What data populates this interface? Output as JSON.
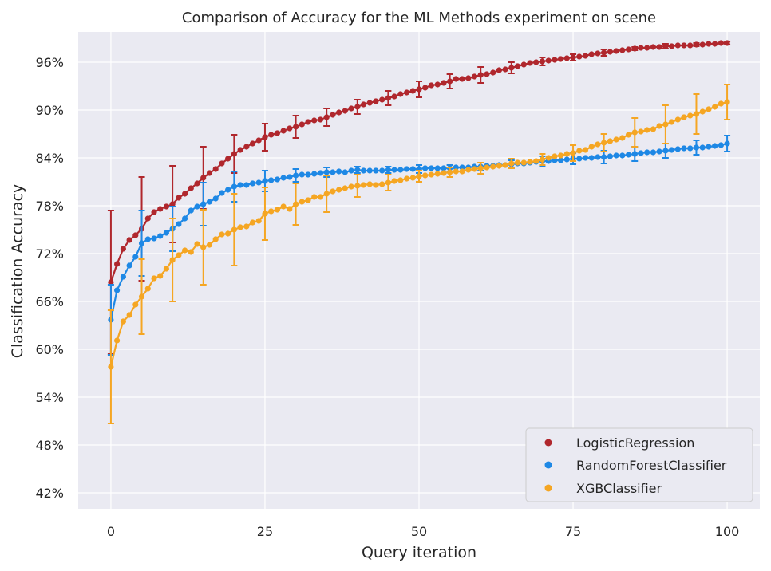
{
  "chart_data": {
    "type": "line",
    "title": "Comparison of Accuracy for the ML Methods experiment on scene",
    "xlabel": "Query iteration",
    "ylabel": "Classification Accuracy",
    "xlim": [
      -5.3,
      105.3
    ],
    "ylim": [
      0.4,
      0.998
    ],
    "xticks": [
      0,
      25,
      50,
      75,
      100
    ],
    "yticks": [
      0.42,
      0.48,
      0.54,
      0.6,
      0.66,
      0.72,
      0.78,
      0.84,
      0.9,
      0.96
    ],
    "ytick_labels": [
      "42%",
      "48%",
      "54%",
      "60%",
      "66%",
      "72%",
      "78%",
      "84%",
      "90%",
      "96%"
    ],
    "grid": true,
    "legend_position": "lower-right",
    "series": [
      {
        "name": "LogisticRegression",
        "color": "#b0272d",
        "x": [
          0,
          1,
          2,
          3,
          4,
          5,
          6,
          7,
          8,
          9,
          10,
          11,
          12,
          13,
          14,
          15,
          16,
          17,
          18,
          19,
          20,
          21,
          22,
          23,
          24,
          25,
          26,
          27,
          28,
          29,
          30,
          31,
          32,
          33,
          34,
          35,
          36,
          37,
          38,
          39,
          40,
          41,
          42,
          43,
          44,
          45,
          46,
          47,
          48,
          49,
          50,
          51,
          52,
          53,
          54,
          55,
          56,
          57,
          58,
          59,
          60,
          61,
          62,
          63,
          64,
          65,
          66,
          67,
          68,
          69,
          70,
          71,
          72,
          73,
          74,
          75,
          76,
          77,
          78,
          79,
          80,
          81,
          82,
          83,
          84,
          85,
          86,
          87,
          88,
          89,
          90,
          91,
          92,
          93,
          94,
          95,
          96,
          97,
          98,
          99,
          100
        ],
        "values": [
          0.684,
          0.707,
          0.726,
          0.737,
          0.743,
          0.751,
          0.764,
          0.772,
          0.776,
          0.779,
          0.782,
          0.79,
          0.795,
          0.802,
          0.808,
          0.815,
          0.821,
          0.826,
          0.833,
          0.839,
          0.845,
          0.85,
          0.854,
          0.858,
          0.862,
          0.866,
          0.869,
          0.871,
          0.874,
          0.877,
          0.879,
          0.882,
          0.885,
          0.887,
          0.888,
          0.891,
          0.894,
          0.897,
          0.899,
          0.902,
          0.904,
          0.907,
          0.909,
          0.911,
          0.913,
          0.915,
          0.917,
          0.92,
          0.922,
          0.924,
          0.926,
          0.928,
          0.931,
          0.932,
          0.934,
          0.936,
          0.939,
          0.939,
          0.94,
          0.942,
          0.944,
          0.945,
          0.947,
          0.95,
          0.951,
          0.953,
          0.955,
          0.957,
          0.959,
          0.96,
          0.961,
          0.962,
          0.963,
          0.964,
          0.965,
          0.966,
          0.967,
          0.968,
          0.97,
          0.971,
          0.972,
          0.973,
          0.974,
          0.975,
          0.976,
          0.977,
          0.978,
          0.978,
          0.979,
          0.979,
          0.98,
          0.98,
          0.981,
          0.981,
          0.981,
          0.982,
          0.982,
          0.983,
          0.983,
          0.984,
          0.984
        ],
        "error_x": [
          0,
          5,
          10,
          15,
          20,
          25,
          30,
          35,
          40,
          45,
          50,
          55,
          60,
          65,
          70,
          75,
          80,
          85,
          90,
          95,
          100
        ],
        "error_values": [
          0.09,
          0.065,
          0.048,
          0.039,
          0.024,
          0.017,
          0.014,
          0.011,
          0.009,
          0.009,
          0.01,
          0.009,
          0.01,
          0.007,
          0.005,
          0.004,
          0.004,
          0.002,
          0.003,
          0.002,
          0.002
        ]
      },
      {
        "name": "RandomForestClassifier",
        "color": "#1e88e5",
        "x": [
          0,
          1,
          2,
          3,
          4,
          5,
          6,
          7,
          8,
          9,
          10,
          11,
          12,
          13,
          14,
          15,
          16,
          17,
          18,
          19,
          20,
          21,
          22,
          23,
          24,
          25,
          26,
          27,
          28,
          29,
          30,
          31,
          32,
          33,
          34,
          35,
          36,
          37,
          38,
          39,
          40,
          41,
          42,
          43,
          44,
          45,
          46,
          47,
          48,
          49,
          50,
          51,
          52,
          53,
          54,
          55,
          56,
          57,
          58,
          59,
          60,
          61,
          62,
          63,
          64,
          65,
          66,
          67,
          68,
          69,
          70,
          71,
          72,
          73,
          74,
          75,
          76,
          77,
          78,
          79,
          80,
          81,
          82,
          83,
          84,
          85,
          86,
          87,
          88,
          89,
          90,
          91,
          92,
          93,
          94,
          95,
          96,
          97,
          98,
          99,
          100
        ],
        "values": [
          0.637,
          0.674,
          0.691,
          0.705,
          0.716,
          0.733,
          0.738,
          0.739,
          0.742,
          0.746,
          0.751,
          0.757,
          0.764,
          0.774,
          0.779,
          0.782,
          0.785,
          0.789,
          0.796,
          0.8,
          0.804,
          0.806,
          0.806,
          0.808,
          0.809,
          0.811,
          0.812,
          0.813,
          0.815,
          0.816,
          0.818,
          0.819,
          0.819,
          0.82,
          0.821,
          0.822,
          0.822,
          0.823,
          0.822,
          0.824,
          0.825,
          0.824,
          0.824,
          0.824,
          0.824,
          0.825,
          0.825,
          0.825,
          0.826,
          0.826,
          0.826,
          0.827,
          0.827,
          0.827,
          0.827,
          0.827,
          0.828,
          0.828,
          0.828,
          0.829,
          0.829,
          0.83,
          0.83,
          0.831,
          0.831,
          0.832,
          0.833,
          0.833,
          0.834,
          0.835,
          0.836,
          0.836,
          0.837,
          0.837,
          0.838,
          0.839,
          0.839,
          0.84,
          0.84,
          0.841,
          0.841,
          0.842,
          0.843,
          0.843,
          0.844,
          0.845,
          0.846,
          0.847,
          0.847,
          0.848,
          0.849,
          0.85,
          0.851,
          0.852,
          0.852,
          0.853,
          0.853,
          0.854,
          0.855,
          0.856,
          0.858
        ],
        "error_x": [
          0,
          5,
          10,
          15,
          20,
          25,
          30,
          35,
          40,
          45,
          50,
          55,
          60,
          65,
          70,
          75,
          80,
          85,
          90,
          95,
          100
        ],
        "error_values": [
          0.044,
          0.041,
          0.028,
          0.027,
          0.019,
          0.013,
          0.008,
          0.006,
          0.004,
          0.004,
          0.005,
          0.004,
          0.005,
          0.005,
          0.006,
          0.007,
          0.008,
          0.009,
          0.009,
          0.009,
          0.01
        ]
      },
      {
        "name": "XGBClassifier",
        "color": "#f5a623",
        "x": [
          0,
          1,
          2,
          3,
          4,
          5,
          6,
          7,
          8,
          9,
          10,
          11,
          12,
          13,
          14,
          15,
          16,
          17,
          18,
          19,
          20,
          21,
          22,
          23,
          24,
          25,
          26,
          27,
          28,
          29,
          30,
          31,
          32,
          33,
          34,
          35,
          36,
          37,
          38,
          39,
          40,
          41,
          42,
          43,
          44,
          45,
          46,
          47,
          48,
          49,
          50,
          51,
          52,
          53,
          54,
          55,
          56,
          57,
          58,
          59,
          60,
          61,
          62,
          63,
          64,
          65,
          66,
          67,
          68,
          69,
          70,
          71,
          72,
          73,
          74,
          75,
          76,
          77,
          78,
          79,
          80,
          81,
          82,
          83,
          84,
          85,
          86,
          87,
          88,
          89,
          90,
          91,
          92,
          93,
          94,
          95,
          96,
          97,
          98,
          99,
          100
        ],
        "values": [
          0.578,
          0.611,
          0.635,
          0.643,
          0.656,
          0.666,
          0.676,
          0.689,
          0.692,
          0.701,
          0.712,
          0.718,
          0.724,
          0.722,
          0.732,
          0.728,
          0.731,
          0.738,
          0.744,
          0.745,
          0.75,
          0.753,
          0.754,
          0.759,
          0.761,
          0.77,
          0.773,
          0.775,
          0.779,
          0.776,
          0.782,
          0.785,
          0.787,
          0.791,
          0.791,
          0.795,
          0.798,
          0.8,
          0.802,
          0.804,
          0.805,
          0.806,
          0.807,
          0.806,
          0.807,
          0.809,
          0.811,
          0.812,
          0.814,
          0.815,
          0.817,
          0.818,
          0.819,
          0.82,
          0.821,
          0.822,
          0.823,
          0.823,
          0.825,
          0.826,
          0.827,
          0.828,
          0.829,
          0.83,
          0.831,
          0.833,
          0.834,
          0.834,
          0.835,
          0.836,
          0.838,
          0.84,
          0.842,
          0.843,
          0.845,
          0.846,
          0.849,
          0.85,
          0.854,
          0.857,
          0.859,
          0.861,
          0.863,
          0.865,
          0.869,
          0.872,
          0.873,
          0.875,
          0.876,
          0.88,
          0.882,
          0.885,
          0.888,
          0.891,
          0.893,
          0.895,
          0.898,
          0.901,
          0.904,
          0.908,
          0.91
        ],
        "error_x": [
          0,
          5,
          10,
          15,
          20,
          25,
          30,
          35,
          40,
          45,
          50,
          55,
          60,
          65,
          70,
          75,
          80,
          85,
          90,
          95,
          100
        ],
        "error_values": [
          0.071,
          0.047,
          0.052,
          0.047,
          0.045,
          0.033,
          0.026,
          0.023,
          0.014,
          0.01,
          0.007,
          0.006,
          0.007,
          0.006,
          0.007,
          0.01,
          0.011,
          0.018,
          0.024,
          0.025,
          0.022
        ]
      }
    ]
  }
}
